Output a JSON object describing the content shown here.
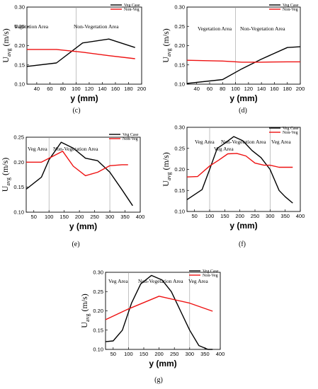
{
  "chart_data": [
    {
      "type": "line",
      "caption": "(c)",
      "xlabel": "y (mm)",
      "ylabel": "U avg (m/s)",
      "xlim": [
        25,
        200
      ],
      "ylim": [
        0.1,
        0.3
      ],
      "xticks": [
        40,
        60,
        80,
        100,
        120,
        140,
        160,
        180,
        200
      ],
      "yticks": [
        0.1,
        0.15,
        0.2,
        0.25,
        0.3
      ],
      "dividers": [
        100
      ],
      "annotations": [
        "Vegetation Area",
        "Non-Vegetation Area"
      ],
      "legend": {
        "placement": "top-right",
        "entries": [
          "Veg Case",
          "Non-Veg"
        ]
      },
      "series": [
        {
          "name": "Veg Case",
          "color": "#000000",
          "x": [
            25,
            70,
            110,
            150,
            190
          ],
          "y": [
            0.146,
            0.155,
            0.207,
            0.217,
            0.195
          ]
        },
        {
          "name": "Non-Veg",
          "color": "#ee1111",
          "x": [
            25,
            70,
            110,
            150,
            190
          ],
          "y": [
            0.19,
            0.19,
            0.183,
            0.174,
            0.166
          ]
        }
      ]
    },
    {
      "type": "line",
      "caption": "(d)",
      "xlabel": "y (mm)",
      "ylabel": "U avg (m/s)",
      "xlim": [
        25,
        200
      ],
      "ylim": [
        0.1,
        0.3
      ],
      "xticks": [
        40,
        60,
        80,
        100,
        120,
        140,
        160,
        180,
        200
      ],
      "yticks": [
        0.1,
        0.15,
        0.2,
        0.25,
        0.3
      ],
      "dividers": [
        100
      ],
      "annotations": [
        "Vegetation Area",
        "Non-Vegetation Area"
      ],
      "legend": {
        "placement": "top-right",
        "entries": [
          "Veg Case",
          "Non-Veg"
        ]
      },
      "series": [
        {
          "name": "Veg Case",
          "color": "#000000",
          "x": [
            25,
            80,
            110,
            140,
            180,
            200
          ],
          "y": [
            0.102,
            0.112,
            0.14,
            0.165,
            0.195,
            0.197
          ]
        },
        {
          "name": "Non-Veg",
          "color": "#ee1111",
          "x": [
            25,
            80,
            110,
            140,
            180,
            200
          ],
          "y": [
            0.162,
            0.16,
            0.157,
            0.157,
            0.158,
            0.158
          ]
        }
      ]
    },
    {
      "type": "line",
      "caption": "(e)",
      "xlabel": "y (mm)",
      "ylabel": "U avg (m/s)",
      "xlim": [
        25,
        400
      ],
      "ylim": [
        0.1,
        0.25
      ],
      "xticks": [
        50,
        100,
        150,
        200,
        250,
        300,
        350,
        400
      ],
      "yticks": [
        0.1,
        0.15,
        0.2,
        0.25
      ],
      "dividers": [
        100,
        300
      ],
      "annotations": [
        "Veg Area",
        "Non-Vegetation Area",
        "Veg Area"
      ],
      "legend": {
        "placement": "top-right",
        "entries": [
          "Veg Case",
          "Non-Veg"
        ]
      },
      "series": [
        {
          "name": "Veg Case",
          "color": "#000000",
          "x": [
            25,
            75,
            100,
            140,
            180,
            220,
            260,
            300,
            340,
            375
          ],
          "y": [
            0.146,
            0.17,
            0.205,
            0.24,
            0.228,
            0.208,
            0.203,
            0.18,
            0.145,
            0.113
          ]
        },
        {
          "name": "Non-Veg",
          "color": "#ee1111",
          "x": [
            25,
            75,
            100,
            145,
            180,
            220,
            260,
            300,
            340,
            360
          ],
          "y": [
            0.2,
            0.2,
            0.208,
            0.222,
            0.192,
            0.173,
            0.18,
            0.193,
            0.195,
            0.195
          ]
        }
      ]
    },
    {
      "type": "line",
      "caption": "(f)",
      "xlabel": "y (mm)",
      "ylabel": "U avg (m/s)",
      "xlim": [
        25,
        400
      ],
      "ylim": [
        0.1,
        0.3
      ],
      "xticks": [
        50,
        100,
        150,
        200,
        250,
        300,
        350,
        400
      ],
      "yticks": [
        0.1,
        0.15,
        0.2,
        0.25,
        0.3
      ],
      "dividers": [
        100,
        300
      ],
      "annotations": [
        "Veg Area",
        "Non-Vegetation Area",
        "Veg Area"
      ],
      "legend": {
        "placement": "top-right",
        "entries": [
          "Veg Case",
          "Non-Veg"
        ]
      },
      "series": [
        {
          "name": "Veg Case",
          "color": "#000000",
          "x": [
            25,
            75,
            100,
            125,
            150,
            180,
            210,
            240,
            270,
            300,
            330,
            350,
            375
          ],
          "y": [
            0.128,
            0.152,
            0.2,
            0.25,
            0.262,
            0.278,
            0.268,
            0.245,
            0.228,
            0.2,
            0.15,
            0.135,
            0.12
          ]
        },
        {
          "name": "Non-Veg",
          "color": "#ee1111",
          "x": [
            25,
            60,
            100,
            130,
            160,
            190,
            220,
            250,
            280,
            300,
            330,
            360,
            375
          ],
          "y": [
            0.182,
            0.183,
            0.208,
            0.222,
            0.237,
            0.238,
            0.232,
            0.215,
            0.21,
            0.21,
            0.205,
            0.205,
            0.205
          ]
        }
      ]
    },
    {
      "type": "line",
      "caption": "(g)",
      "xlabel": "y (mm)",
      "ylabel": "U avg (m/s)",
      "xlim": [
        25,
        400
      ],
      "ylim": [
        0.1,
        0.3
      ],
      "xticks": [
        50,
        100,
        150,
        200,
        250,
        300,
        350,
        400
      ],
      "yticks": [
        0.1,
        0.15,
        0.2,
        0.25,
        0.3
      ],
      "dividers": [
        100,
        300
      ],
      "annotations": [
        "Veg Area",
        "Non-Vegetation Area",
        "Veg Area"
      ],
      "legend": {
        "placement": "top-right",
        "entries": [
          "Veg Case",
          "Non-Veg"
        ]
      },
      "series": [
        {
          "name": "Veg Case",
          "color": "#000000",
          "x": [
            25,
            50,
            80,
            110,
            140,
            175,
            210,
            240,
            270,
            300,
            330,
            360,
            375
          ],
          "y": [
            0.12,
            0.122,
            0.15,
            0.22,
            0.27,
            0.292,
            0.28,
            0.25,
            0.2,
            0.15,
            0.11,
            0.1,
            0.1
          ]
        },
        {
          "name": "Non-Veg",
          "color": "#ee1111",
          "x": [
            25,
            100,
            200,
            300,
            375
          ],
          "y": [
            0.177,
            0.205,
            0.238,
            0.22,
            0.199
          ]
        }
      ]
    }
  ]
}
